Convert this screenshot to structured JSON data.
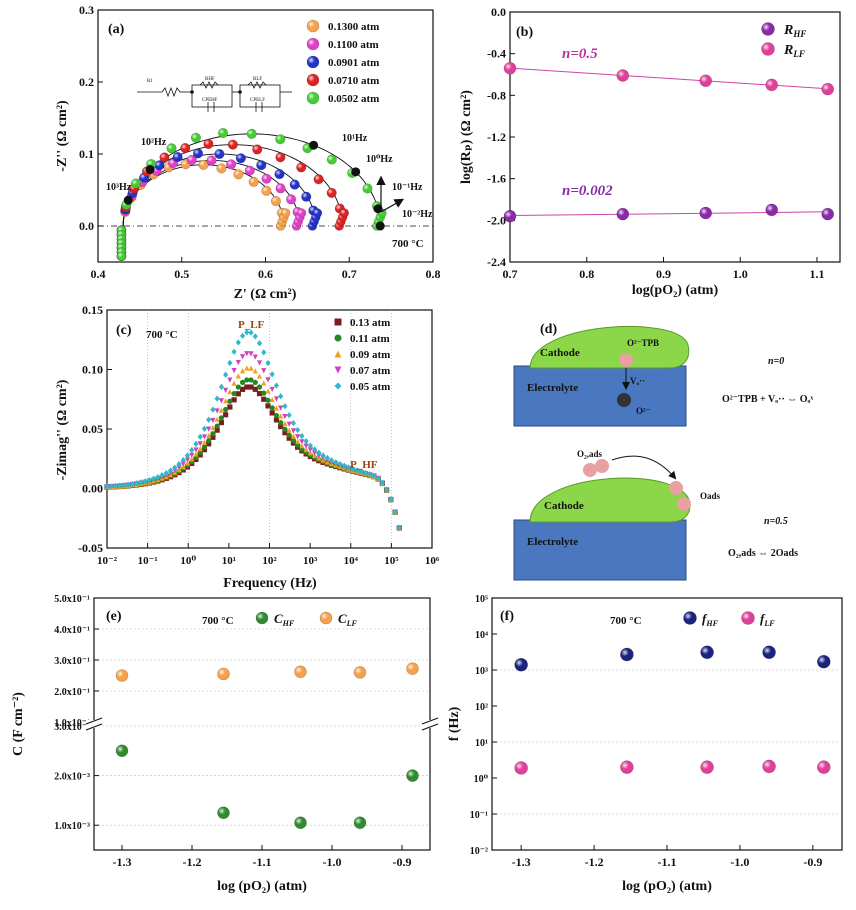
{
  "figure": {
    "panels": [
      "(a)",
      "(b)",
      "(c)",
      "(d)",
      "(e)",
      "(f)"
    ]
  },
  "chart_data": [
    {
      "id": "a",
      "type": "scatter",
      "panel_label": "(a)",
      "xlabel": "Z' (Ω cm²)",
      "ylabel": "-Z'' (Ω cm²)",
      "xlim": [
        0.4,
        0.8
      ],
      "ylim": [
        -0.05,
        0.3
      ],
      "xticks": [
        "0.4",
        "0.5",
        "0.6",
        "0.7",
        "0.8"
      ],
      "yticks": [
        "0.0",
        "0.1",
        "0.2",
        "0.3"
      ],
      "legend_position": "top-right",
      "annotation_temp": "700 °C",
      "circuit_labels": [
        "R1",
        "RHF",
        "RLF",
        "CPEHF",
        "CPELF"
      ],
      "frequency_labels": [
        "10³Hz",
        "10²Hz",
        "10¹Hz",
        "10⁰Hz",
        "10⁻¹Hz",
        "10⁻²Hz"
      ],
      "series": [
        {
          "name": "0.1300 atm",
          "color": "#f5a04a",
          "r0": 0.43,
          "r1": 0.622,
          "peak": 0.085
        },
        {
          "name": "0.1100 atm",
          "color": "#e040c8",
          "r0": 0.43,
          "r1": 0.641,
          "peak": 0.091
        },
        {
          "name": "0.0901 atm",
          "color": "#2233cc",
          "r0": 0.43,
          "r1": 0.66,
          "peak": 0.1
        },
        {
          "name": "0.0710 atm",
          "color": "#dd2222",
          "r0": 0.43,
          "r1": 0.692,
          "peak": 0.113
        },
        {
          "name": "0.0502 atm",
          "color": "#44cc33",
          "r0": 0.43,
          "r1": 0.737,
          "peak": 0.128
        }
      ]
    },
    {
      "id": "b",
      "type": "line",
      "panel_label": "(b)",
      "xlabel": "log(pO₂) (atm)",
      "ylabel": "log(Rₚ) (Ω cm²)",
      "xlim": [
        0.7,
        1.13
      ],
      "ylim": [
        -2.4,
        0.0
      ],
      "xticks": [
        "0.7",
        "0.8",
        "0.9",
        "1.0",
        "1.1"
      ],
      "yticks": [
        "0.0",
        "-0.4",
        "-0.8",
        "-1.2",
        "-1.6",
        "-2.0",
        "-2.4"
      ],
      "legend_position": "top-right",
      "x": [
        0.7,
        0.847,
        0.955,
        1.041,
        1.114
      ],
      "series": [
        {
          "name": "R_HF",
          "color": "#8a2aa8",
          "values": [
            -1.96,
            -1.94,
            -1.93,
            -1.9,
            -1.94
          ],
          "slope_label": "n=0.002"
        },
        {
          "name": "R_LF",
          "color": "#e0409a",
          "values": [
            -0.54,
            -0.61,
            -0.66,
            -0.7,
            -0.74
          ],
          "slope_label": "n=0.5"
        }
      ]
    },
    {
      "id": "c",
      "type": "scatter",
      "panel_label": "(c)",
      "xlabel": "Frequency (Hz)",
      "ylabel": "-Zimag'' (Ω cm²)",
      "xscale": "log",
      "xlim": [
        0.01,
        1000000
      ],
      "ylim": [
        -0.05,
        0.15
      ],
      "xticks": [
        "10⁻²",
        "10⁻¹",
        "10⁰",
        "10¹",
        "10²",
        "10³",
        "10⁴",
        "10⁵",
        "10⁶"
      ],
      "yticks": [
        "-0.05",
        "0.00",
        "0.05",
        "0.10",
        "0.15"
      ],
      "legend_position": "top-right",
      "annotation_temp": "700 °C",
      "peak_labels": [
        "P_LF",
        "P_HF"
      ],
      "series": [
        {
          "name": "0.13 atm",
          "color": "#7a1f1f",
          "peak": 0.082,
          "marker": "square"
        },
        {
          "name": "0.11 atm",
          "color": "#228822",
          "peak": 0.088,
          "marker": "circle"
        },
        {
          "name": "0.09 atm",
          "color": "#f0a020",
          "peak": 0.098,
          "marker": "triangle"
        },
        {
          "name": "0.07 atm",
          "color": "#d040c0",
          "peak": 0.11,
          "marker": "triangle-down"
        },
        {
          "name": "0.05 atm",
          "color": "#30b8c8",
          "peak": 0.128,
          "marker": "diamond"
        }
      ]
    },
    {
      "id": "e",
      "type": "scatter",
      "panel_label": "(e)",
      "xlabel": "log (pO₂) (atm)",
      "ylabel": "C (F cm⁻²)",
      "xlim": [
        -1.34,
        -0.86
      ],
      "xticks": [
        "-1.3",
        "-1.2",
        "-1.1",
        "-1.0",
        "-0.9"
      ],
      "yticks_upper": [
        "1.0x10⁻¹",
        "2.0x10⁻¹",
        "3.0x10⁻¹",
        "4.0x10⁻¹",
        "5.0x10⁻¹"
      ],
      "yticks_lower": [
        "1.0x10⁻³",
        "2.0x10⁻³",
        "3.0x10⁻³"
      ],
      "annotation_temp": "700 °C",
      "x": [
        -1.3,
        -1.155,
        -1.045,
        -0.96,
        -0.885
      ],
      "series": [
        {
          "name": "C_HF",
          "color": "#2e8b2e",
          "values": [
            0.0025,
            0.00125,
            0.00105,
            0.00105,
            0.002
          ]
        },
        {
          "name": "C_LF",
          "color": "#f5a04a",
          "values": [
            0.25,
            0.255,
            0.262,
            0.26,
            0.272
          ]
        }
      ]
    },
    {
      "id": "f",
      "type": "scatter",
      "panel_label": "(f)",
      "xlabel": "log (pO₂) (atm)",
      "ylabel": "f (Hz)",
      "yscale": "log",
      "xlim": [
        -1.34,
        -0.86
      ],
      "ylim": [
        0.01,
        100000
      ],
      "xticks": [
        "-1.3",
        "-1.2",
        "-1.1",
        "-1.0",
        "-0.9"
      ],
      "yticks": [
        "10⁻²",
        "10⁻¹",
        "10⁰",
        "10¹",
        "10²",
        "10³",
        "10⁴",
        "10⁵"
      ],
      "annotation_temp": "700 °C",
      "x": [
        -1.3,
        -1.155,
        -1.045,
        -0.96,
        -0.885
      ],
      "series": [
        {
          "name": "f_HF",
          "color": "#1a237e",
          "values": [
            1400,
            2700,
            3100,
            3100,
            1700
          ]
        },
        {
          "name": "f_LF",
          "color": "#e0409a",
          "values": [
            1.9,
            2.0,
            2.0,
            2.1,
            2.0
          ]
        }
      ]
    }
  ],
  "diagram_d": {
    "panel_label": "(d)",
    "top": {
      "cathode": "Cathode",
      "electrolyte": "Electrolyte",
      "species_tpb": "O²⁻TPB",
      "vacancy": "Vₒ··",
      "oxide": "O²⁻",
      "n_label": "n=0",
      "equation": "O²⁻TPB + Vₒ·· ⇔ Oₒˣ"
    },
    "bottom": {
      "cathode": "Cathode",
      "electrolyte": "Electrolyte",
      "species_gas": "O₂,ads",
      "species_ads": "Oads",
      "n_label": "n=0.5",
      "equation": "O₂,ads ⇔ 2Oads"
    }
  }
}
